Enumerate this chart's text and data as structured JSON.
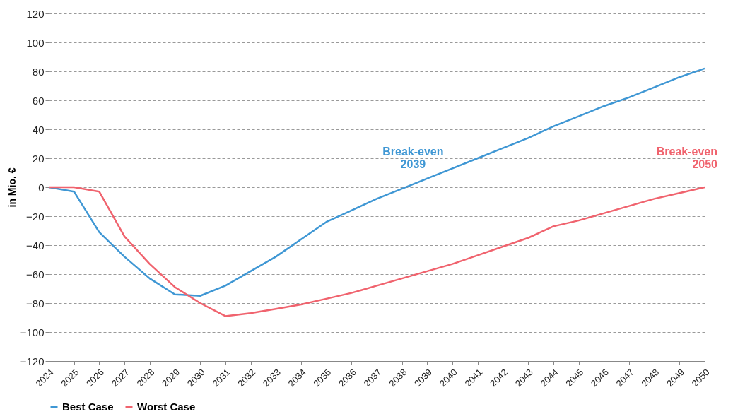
{
  "chart_data": {
    "type": "line",
    "ylabel": "in Mio. €",
    "categories": [
      "2024",
      "2025",
      "2026",
      "2027",
      "2028",
      "2029",
      "2030",
      "2031",
      "2032",
      "2033",
      "2034",
      "2035",
      "2036",
      "2037",
      "2038",
      "2039",
      "2040",
      "2041",
      "2042",
      "2043",
      "2044",
      "2045",
      "2046",
      "2047",
      "2048",
      "2049",
      "2050"
    ],
    "series": [
      {
        "name": "Best Case",
        "color": "#3f97d4",
        "values": [
          0,
          -3,
          -31,
          -48,
          -63,
          -74,
          -75,
          -68,
          -58,
          -48,
          -36,
          -24,
          -16,
          -8,
          -1,
          6,
          13,
          20,
          27,
          34,
          42,
          49,
          56,
          62,
          69,
          76,
          82
        ]
      },
      {
        "name": "Worst Case",
        "color": "#f0636e",
        "values": [
          0,
          0,
          -3,
          -34,
          -53,
          -69,
          -80,
          -89,
          -87,
          -84,
          -81,
          -77,
          -73,
          -68,
          -63,
          -58,
          -53,
          -47,
          -41,
          -35,
          -27,
          -23,
          -18,
          -13,
          -8,
          -4,
          0
        ]
      }
    ],
    "annotations": [
      "Break-even\n2039",
      "Break-even\n2050"
    ],
    "ylim": [
      -120,
      120
    ],
    "yticks": [
      -120,
      -100,
      -80,
      -60,
      -40,
      -20,
      0,
      20,
      40,
      60,
      80,
      100,
      120
    ],
    "grid": "y",
    "legend": "bottom",
    "marker": "none",
    "line_style": "solid"
  }
}
